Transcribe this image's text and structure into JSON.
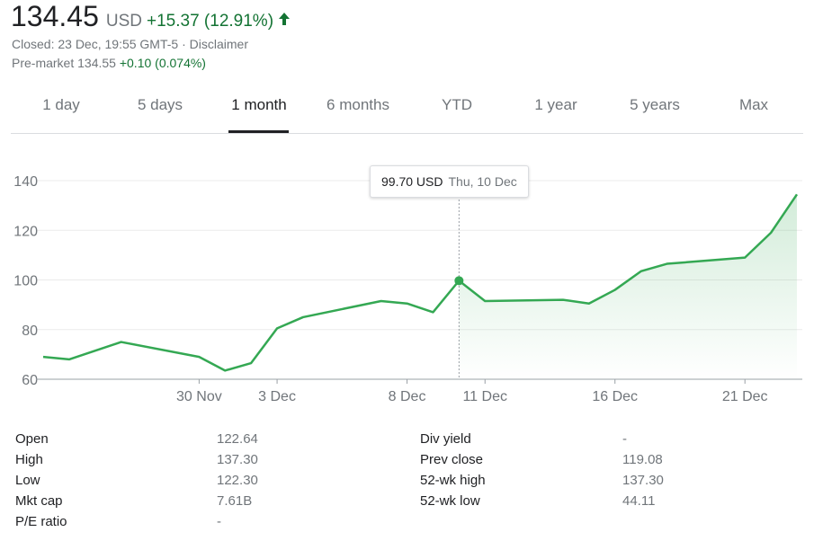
{
  "quote": {
    "price": "134.45",
    "currency": "USD",
    "change": "+15.37 (12.91%)",
    "change_color": "#137333",
    "arrow_icon": "arrow-up-icon",
    "closed_text": "Closed: 23 Dec, 19:55 GMT-5",
    "separator": " · ",
    "disclaimer": "Disclaimer",
    "premarket_label": "Pre-market 134.55 ",
    "premarket_change": "+0.10 (0.074%)"
  },
  "tabs": [
    {
      "label": "1 day"
    },
    {
      "label": "5 days"
    },
    {
      "label": "1 month",
      "active": true
    },
    {
      "label": "6 months"
    },
    {
      "label": "YTD"
    },
    {
      "label": "1 year"
    },
    {
      "label": "5 years"
    },
    {
      "label": "Max"
    }
  ],
  "tooltip": {
    "price": "99.70 USD",
    "date": "Thu, 10 Dec"
  },
  "chart_data": {
    "type": "area",
    "line_color": "#34a853",
    "y_ticks": [
      "140",
      "120",
      "100",
      "80",
      "60"
    ],
    "x_ticks": [
      "30 Nov",
      "3 Dec",
      "8 Dec",
      "11 Dec",
      "16 Dec",
      "21 Dec"
    ],
    "ylim": [
      60,
      140
    ],
    "series": [
      {
        "x": [
          "24 Nov",
          "25 Nov",
          "27 Nov",
          "30 Nov",
          "1 Dec",
          "2 Dec",
          "3 Dec",
          "4 Dec",
          "7 Dec",
          "8 Dec",
          "9 Dec",
          "10 Dec",
          "11 Dec",
          "14 Dec",
          "15 Dec",
          "16 Dec",
          "17 Dec",
          "18 Dec",
          "21 Dec",
          "22 Dec",
          "23 Dec"
        ],
        "values": [
          69,
          68,
          75,
          69,
          63.5,
          66.5,
          80.5,
          85,
          91.5,
          90.5,
          87,
          99.7,
          91.5,
          92,
          90.5,
          96,
          103.5,
          106.5,
          109,
          119,
          134.45
        ]
      }
    ],
    "highlight": {
      "x": "10 Dec",
      "value": 99.7
    },
    "grid": true
  },
  "stats": {
    "left": [
      {
        "label": "Open",
        "value": "122.64"
      },
      {
        "label": "High",
        "value": "137.30"
      },
      {
        "label": "Low",
        "value": "122.30"
      },
      {
        "label": "Mkt cap",
        "value": "7.61B"
      },
      {
        "label": "P/E ratio",
        "value": "-"
      }
    ],
    "right": [
      {
        "label": "Div yield",
        "value": "-"
      },
      {
        "label": "Prev close",
        "value": "119.08"
      },
      {
        "label": "52-wk high",
        "value": "137.30"
      },
      {
        "label": "52-wk low",
        "value": "44.11"
      }
    ]
  }
}
